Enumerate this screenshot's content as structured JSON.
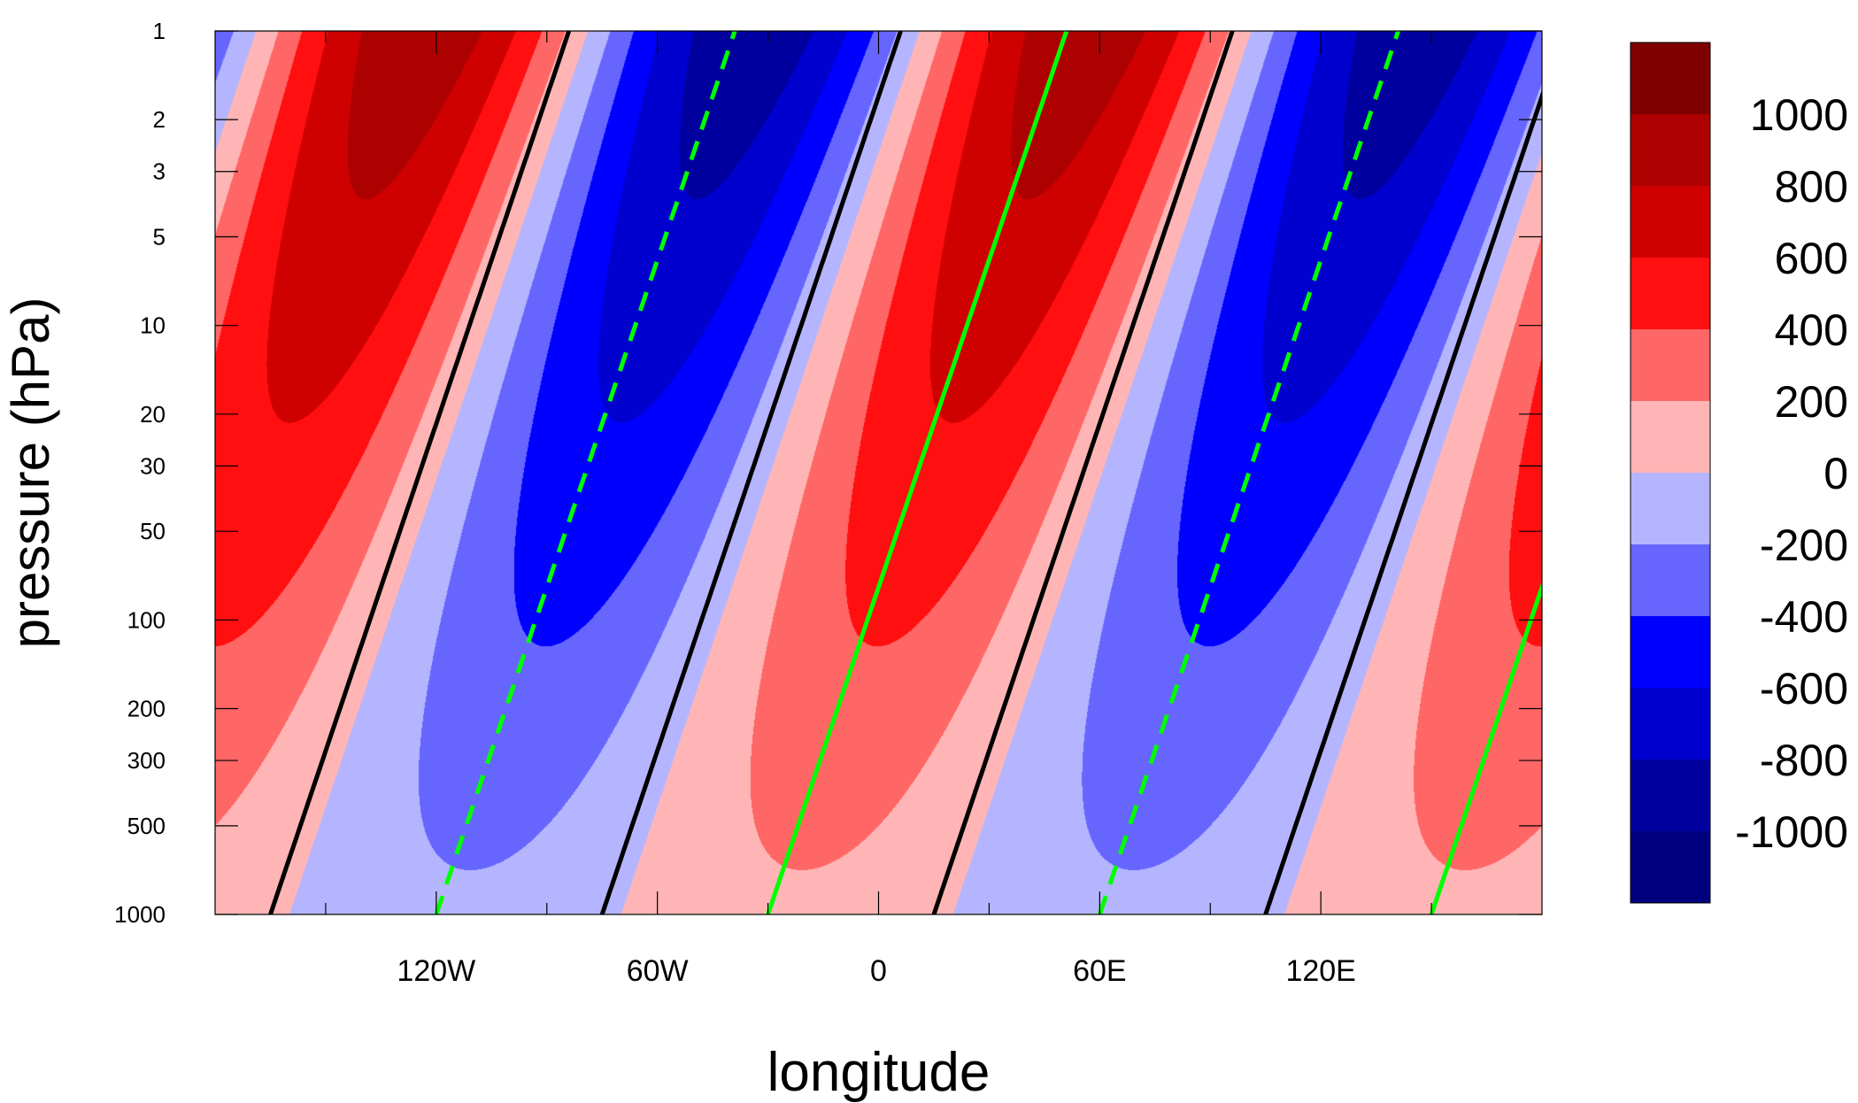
{
  "chart_data": {
    "type": "heatmap",
    "title": "",
    "xlabel": "longitude",
    "ylabel": "pressure (hPa)",
    "x_axis": {
      "range": [
        -180,
        180
      ],
      "ticks": [
        -120,
        -60,
        0,
        60,
        120
      ],
      "tick_labels": [
        "120W",
        "60W",
        "0",
        "60E",
        "120E"
      ],
      "minor_ticks": [
        -150,
        -90,
        -30,
        30,
        90,
        150
      ]
    },
    "y_axis": {
      "scale": "log",
      "inverted": true,
      "range": [
        1000,
        1
      ],
      "ticks": [
        1,
        2,
        3,
        5,
        10,
        20,
        30,
        50,
        100,
        200,
        300,
        500,
        1000
      ],
      "tick_labels": [
        "1",
        "2",
        "3",
        "5",
        "10",
        "20",
        "30",
        "50",
        "100",
        "200",
        "300",
        "500",
        "1000"
      ]
    },
    "colorbar": {
      "placement": "right",
      "colors": [
        "#00007f",
        "#00009f",
        "#0000cf",
        "#0000ff",
        "#6666ff",
        "#b5b5ff",
        "#ffb5b5",
        "#ff6666",
        "#ff0f0f",
        "#cf0000",
        "#ad0000",
        "#7f0000"
      ],
      "labels": [
        "-1000",
        "-800",
        "-600",
        "-400",
        "-200",
        "0",
        "200",
        "400",
        "600",
        "800",
        "1000"
      ]
    },
    "field": {
      "description_units": "shaded contours",
      "wavenumber": 2,
      "amplitude_surface": 160,
      "amplitude_top": 950,
      "phase_tilt_deg_per_decade_pressure": 27,
      "phase_offset_deg": 20
    },
    "contour_overlays": [
      {
        "color": "#000000",
        "style": "solid",
        "near_surface_longitudes": [
          -165,
          -75,
          15,
          105
        ]
      },
      {
        "color": "#00ff00",
        "style": "solid",
        "near_surface_longitudes": [
          -30,
          150
        ]
      },
      {
        "color": "#00ff00",
        "style": "dashed",
        "near_surface_longitudes": [
          -120,
          60
        ]
      }
    ],
    "grid": false,
    "legend": "colorbar-right"
  }
}
